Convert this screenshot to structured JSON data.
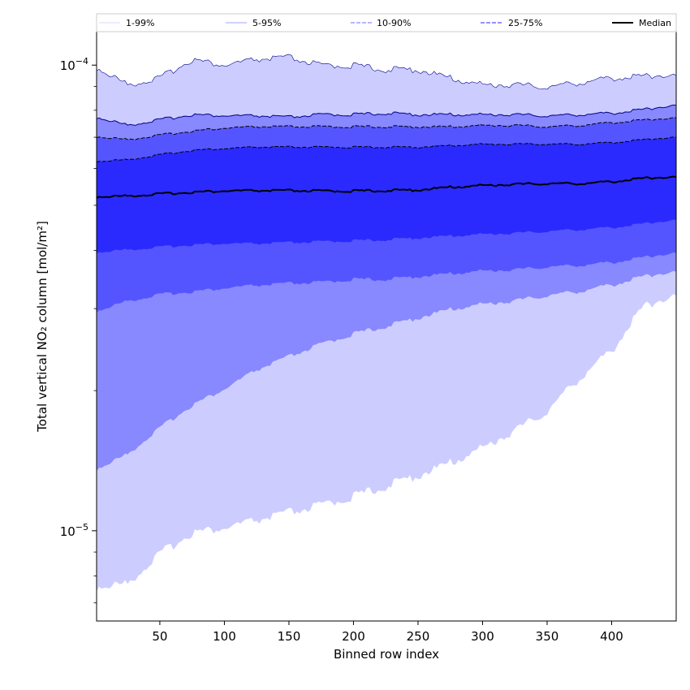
{
  "chart_data": {
    "type": "area",
    "xlabel": "Binned row index",
    "ylabel": "Total vertical NO₂ column [mol/m²]",
    "xlim": [
      1,
      450
    ],
    "ylim": [
      6.4e-06,
      0.000118
    ],
    "yscale": "log",
    "x_ticks": [
      50,
      100,
      150,
      200,
      250,
      300,
      350,
      400
    ],
    "y_ticks": [
      {
        "value": 0.0001,
        "label": "10",
        "exp": "−4"
      },
      {
        "value": 1e-05,
        "label": "10",
        "exp": "−5"
      }
    ],
    "legend": {
      "placement": "top",
      "entries": [
        {
          "label": "1-99%",
          "color": "#ccccff",
          "style": "solid"
        },
        {
          "label": "5-95%",
          "color": "#8888ff",
          "style": "solid"
        },
        {
          "label": "10-90%",
          "color": "#8a8aff",
          "style": "dashed"
        },
        {
          "label": "25-75%",
          "color": "#5050ff",
          "style": "dashed"
        },
        {
          "label": "Median",
          "color": "#000000",
          "style": "solid-thick"
        }
      ]
    },
    "x": [
      1,
      25,
      50,
      75,
      100,
      125,
      150,
      175,
      200,
      225,
      250,
      275,
      300,
      325,
      350,
      375,
      400,
      425,
      450
    ],
    "series": [
      {
        "name": "1-99%",
        "fill": "#ccccff",
        "edge": "#00008b",
        "upper": [
          9.8e-05,
          9e-05,
          9.3e-05,
          0.000102,
          9.9e-05,
          0.000102,
          0.000103,
          9.9e-05,
          9.9e-05,
          9.7e-05,
          9.7e-05,
          9.3e-05,
          9e-05,
          9e-05,
          8.9e-05,
          9.1e-05,
          9.3e-05,
          9.4e-05,
          9.5e-05
        ],
        "lower": [
          7.5e-06,
          7.6e-06,
          8.8e-06,
          9.8e-06,
          1e-05,
          1.04e-05,
          1.08e-05,
          1.12e-05,
          1.17e-05,
          1.23e-05,
          1.3e-05,
          1.38e-05,
          1.49e-05,
          1.62e-05,
          1.78e-05,
          2.1e-05,
          2.4e-05,
          3e-05,
          3.2e-05
        ]
      },
      {
        "name": "5-95%",
        "fill": "#8888ff",
        "edge": "#00008b",
        "upper": [
          7.7e-05,
          7.4e-05,
          7.6e-05,
          7.8e-05,
          7.75e-05,
          7.75e-05,
          7.7e-05,
          7.8e-05,
          7.8e-05,
          7.85e-05,
          7.8e-05,
          7.8e-05,
          7.8e-05,
          7.8e-05,
          7.75e-05,
          7.8e-05,
          7.85e-05,
          8e-05,
          8.2e-05
        ],
        "lower": [
          1.35e-05,
          1.45e-05,
          1.65e-05,
          1.85e-05,
          2e-05,
          2.2e-05,
          2.35e-05,
          2.5e-05,
          2.63e-05,
          2.73e-05,
          2.85e-05,
          2.97e-05,
          3.05e-05,
          3.1e-05,
          3.18e-05,
          3.25e-05,
          3.35e-05,
          3.5e-05,
          3.6e-05
        ]
      },
      {
        "name": "10-90%",
        "fill": "#5555ff",
        "edge": "#000000",
        "upper": [
          7e-05,
          6.9e-05,
          7.05e-05,
          7.2e-05,
          7.3e-05,
          7.35e-05,
          7.35e-05,
          7.35e-05,
          7.35e-05,
          7.35e-05,
          7.35e-05,
          7.35e-05,
          7.4e-05,
          7.4e-05,
          7.35e-05,
          7.4e-05,
          7.5e-05,
          7.6e-05,
          7.7e-05
        ],
        "lower": [
          2.95e-05,
          3.1e-05,
          3.2e-05,
          3.25e-05,
          3.3e-05,
          3.35e-05,
          3.38e-05,
          3.4e-05,
          3.45e-05,
          3.45e-05,
          3.5e-05,
          3.55e-05,
          3.6e-05,
          3.62e-05,
          3.67e-05,
          3.7e-05,
          3.75e-05,
          3.85e-05,
          3.95e-05
        ]
      },
      {
        "name": "25-75%",
        "fill": "#2a2aff",
        "edge": "#000000",
        "upper": [
          6.2e-05,
          6.25e-05,
          6.4e-05,
          6.55e-05,
          6.6e-05,
          6.65e-05,
          6.65e-05,
          6.65e-05,
          6.65e-05,
          6.65e-05,
          6.65e-05,
          6.7e-05,
          6.75e-05,
          6.75e-05,
          6.75e-05,
          6.75e-05,
          6.8e-05,
          6.9e-05,
          7e-05
        ],
        "lower": [
          3.95e-05,
          4e-05,
          4.05e-05,
          4.1e-05,
          4.12e-05,
          4.12e-05,
          4.14e-05,
          4.16e-05,
          4.18e-05,
          4.2e-05,
          4.24e-05,
          4.28e-05,
          4.32e-05,
          4.34e-05,
          4.38e-05,
          4.42e-05,
          4.46e-05,
          4.55e-05,
          4.65e-05
        ]
      },
      {
        "name": "Median",
        "line": "#000000",
        "values": [
          5.2e-05,
          5.22e-05,
          5.27e-05,
          5.32e-05,
          5.35e-05,
          5.36e-05,
          5.36e-05,
          5.35e-05,
          5.35e-05,
          5.36e-05,
          5.38e-05,
          5.45e-05,
          5.5e-05,
          5.53e-05,
          5.55e-05,
          5.55e-05,
          5.6e-05,
          5.7e-05,
          5.75e-05
        ]
      }
    ]
  }
}
